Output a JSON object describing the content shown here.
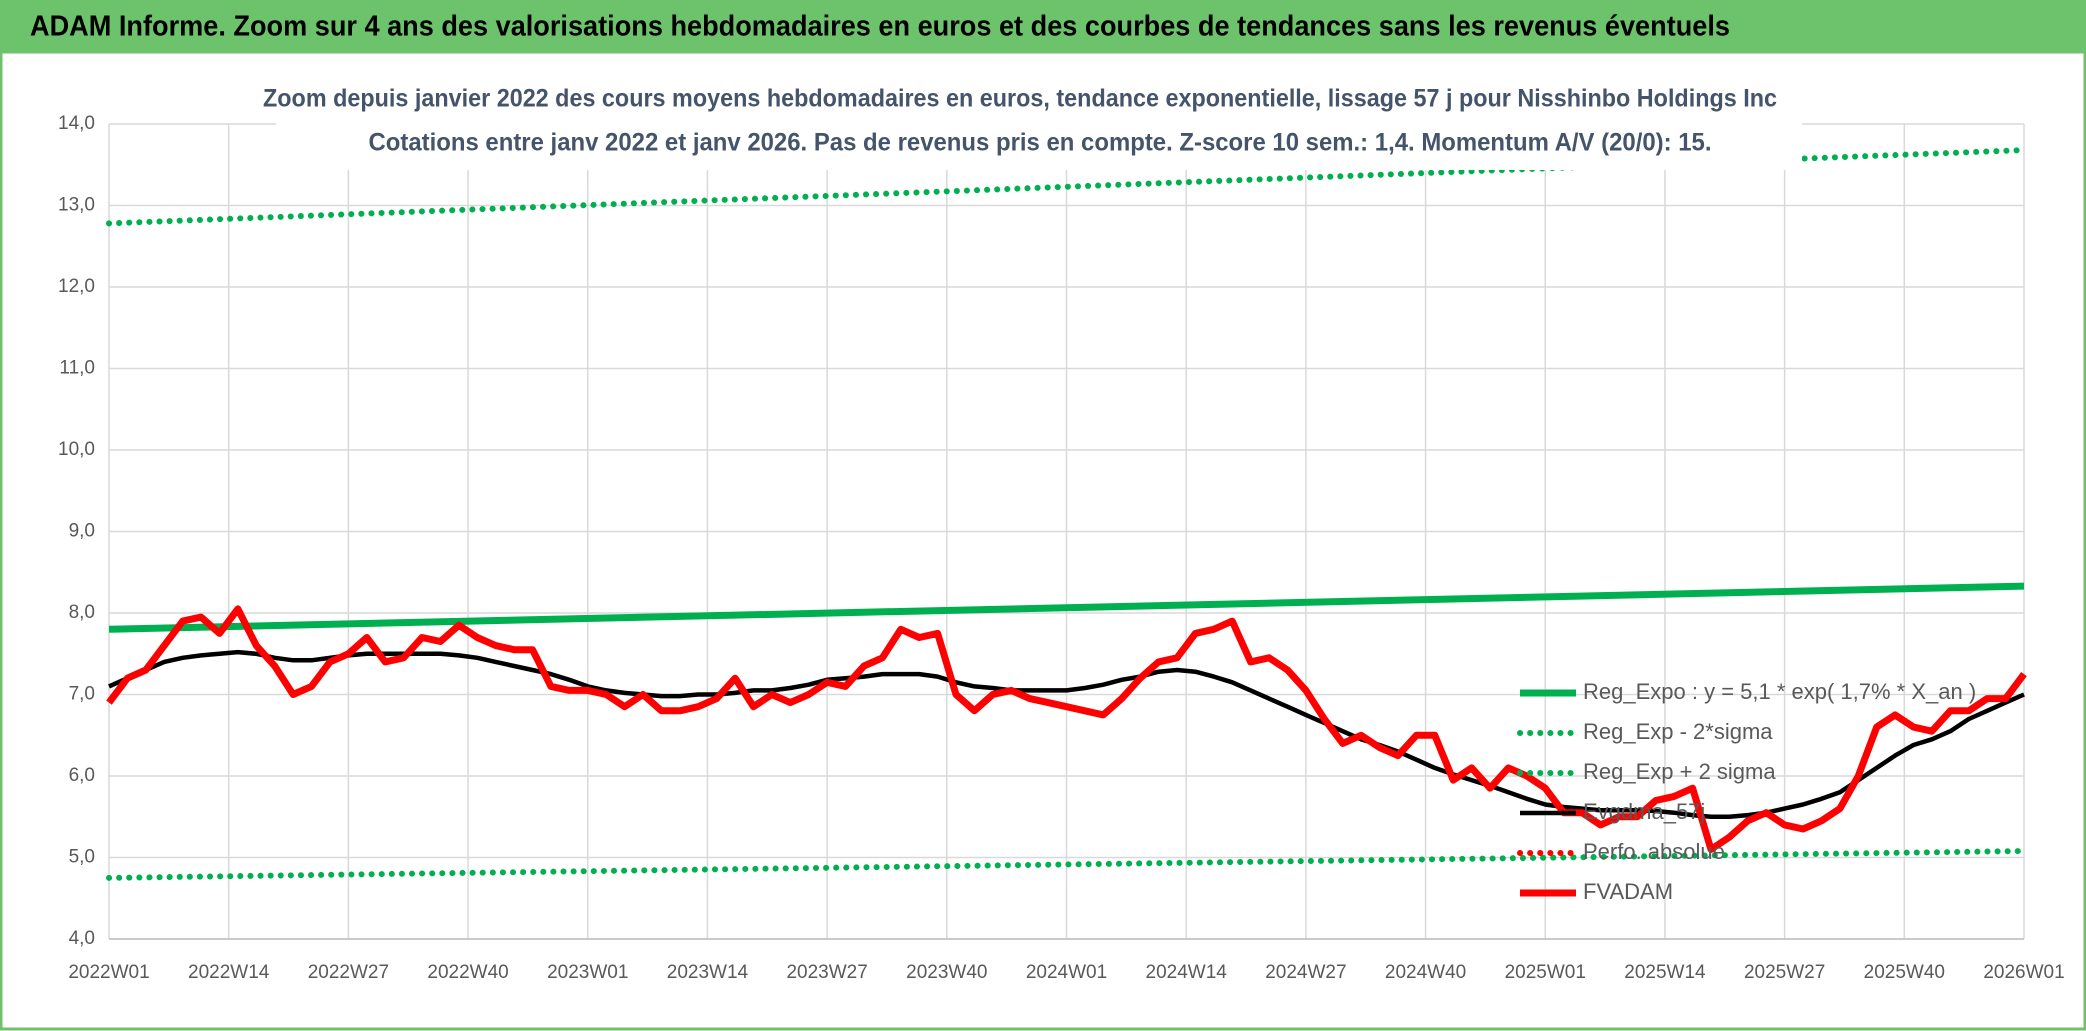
{
  "chart_data": {
    "type": "line",
    "header": "ADAM Informe. Zoom sur 4 ans des valorisations hebdomadaires en euros et des courbes de tendances sans les revenus éventuels",
    "title": "Zoom depuis janvier 2022 des cours moyens hebdomadaires en euros, tendance exponentielle, lissage 57 j pour Nisshinbo Holdings Inc",
    "subtitle": "Cotations entre janv 2022 et janv 2026. Pas de revenus pris en compte. Z-score 10 sem.: 1,4. Momentum A/V (20/0): 15.",
    "x": [
      0,
      2,
      4,
      6,
      8,
      10,
      12,
      14,
      16,
      18,
      20,
      22,
      24,
      26,
      28,
      30,
      32,
      34,
      36,
      38,
      40,
      42,
      44,
      46,
      48,
      50,
      52,
      54,
      56,
      58,
      60,
      62,
      64,
      66,
      68,
      70,
      72,
      74,
      76,
      78,
      80,
      82,
      84,
      86,
      88,
      90,
      92,
      94,
      96,
      98,
      100,
      102,
      104,
      106,
      108,
      110,
      112,
      114,
      116,
      118,
      120,
      122,
      124,
      126,
      128,
      130,
      132,
      134,
      136,
      138,
      140,
      142,
      144,
      146,
      148,
      150,
      152,
      154,
      156,
      158,
      160,
      162,
      164,
      166,
      168,
      170,
      172,
      174,
      176,
      178,
      180,
      182,
      184,
      186,
      188,
      190,
      192,
      194,
      196,
      198,
      200,
      202,
      204,
      206,
      208
    ],
    "xlim": [
      0,
      208
    ],
    "xticks": [
      {
        "value": 0,
        "label": "2022W01"
      },
      {
        "value": 13,
        "label": "2022W14"
      },
      {
        "value": 26,
        "label": "2022W27"
      },
      {
        "value": 39,
        "label": "2022W40"
      },
      {
        "value": 52,
        "label": "2023W01"
      },
      {
        "value": 65,
        "label": "2023W14"
      },
      {
        "value": 78,
        "label": "2023W27"
      },
      {
        "value": 91,
        "label": "2023W40"
      },
      {
        "value": 104,
        "label": "2024W01"
      },
      {
        "value": 117,
        "label": "2024W14"
      },
      {
        "value": 130,
        "label": "2024W27"
      },
      {
        "value": 143,
        "label": "2024W40"
      },
      {
        "value": 156,
        "label": "2025W01"
      },
      {
        "value": 169,
        "label": "2025W14"
      },
      {
        "value": 182,
        "label": "2025W27"
      },
      {
        "value": 195,
        "label": "2025W40"
      },
      {
        "value": 208,
        "label": "2026W01"
      }
    ],
    "ylim": [
      4,
      14
    ],
    "yticks": [
      {
        "value": 4,
        "label": "4,0"
      },
      {
        "value": 5,
        "label": "5,0"
      },
      {
        "value": 6,
        "label": "6,0"
      },
      {
        "value": 7,
        "label": "7,0"
      },
      {
        "value": 8,
        "label": "8,0"
      },
      {
        "value": 9,
        "label": "9,0"
      },
      {
        "value": 10,
        "label": "10,0"
      },
      {
        "value": 11,
        "label": "11,0"
      },
      {
        "value": 12,
        "label": "12,0"
      },
      {
        "value": 13,
        "label": "13,0"
      },
      {
        "value": 14,
        "label": "14,0"
      }
    ],
    "grid": true,
    "series": [
      {
        "name": "Reg_Expo : y = 5,1 * exp( 1,7% *  X_an )",
        "color": "#00b050",
        "style": "solid",
        "x": [
          0,
          208
        ],
        "values": [
          7.8,
          8.33
        ]
      },
      {
        "name": "Reg_Exp - 2*sigma",
        "color": "#00b050",
        "style": "dotted",
        "x": [
          0,
          208
        ],
        "values": [
          4.75,
          5.08
        ]
      },
      {
        "name": "Reg_Exp + 2 sigma",
        "color": "#00b050",
        "style": "dotted",
        "x": [
          0,
          208
        ],
        "values": [
          12.78,
          13.68
        ]
      },
      {
        "name": "Evgdma_57j",
        "color": "#000000",
        "style": "solid",
        "values": [
          7.1,
          7.2,
          7.3,
          7.4,
          7.45,
          7.48,
          7.5,
          7.52,
          7.5,
          7.45,
          7.42,
          7.42,
          7.45,
          7.48,
          7.5,
          7.5,
          7.5,
          7.5,
          7.5,
          7.48,
          7.45,
          7.4,
          7.35,
          7.3,
          7.25,
          7.18,
          7.1,
          7.05,
          7.02,
          7.0,
          6.98,
          6.98,
          7.0,
          7.0,
          7.02,
          7.05,
          7.05,
          7.08,
          7.12,
          7.18,
          7.2,
          7.22,
          7.25,
          7.25,
          7.25,
          7.22,
          7.15,
          7.1,
          7.08,
          7.05,
          7.05,
          7.05,
          7.05,
          7.08,
          7.12,
          7.18,
          7.22,
          7.28,
          7.3,
          7.28,
          7.22,
          7.15,
          7.05,
          6.95,
          6.85,
          6.75,
          6.65,
          6.55,
          6.45,
          6.38,
          6.3,
          6.2,
          6.1,
          6.02,
          5.95,
          5.88,
          5.8,
          5.72,
          5.65,
          5.62,
          5.6,
          5.58,
          5.58,
          5.58,
          5.57,
          5.55,
          5.52,
          5.5,
          5.5,
          5.52,
          5.55,
          5.6,
          5.65,
          5.72,
          5.8,
          5.95,
          6.1,
          6.25,
          6.38,
          6.45,
          6.55,
          6.7,
          6.8,
          6.9,
          7.0
        ]
      },
      {
        "name": "Perfo. absolue",
        "color": "#ff0000",
        "style": "dotted",
        "x": [],
        "values": []
      },
      {
        "name": "FVADAM",
        "color": "#ff0000",
        "style": "thick",
        "values": [
          6.9,
          7.2,
          7.3,
          7.6,
          7.9,
          7.95,
          7.75,
          8.05,
          7.6,
          7.35,
          7.0,
          7.1,
          7.4,
          7.5,
          7.7,
          7.4,
          7.45,
          7.7,
          7.65,
          7.85,
          7.7,
          7.6,
          7.55,
          7.55,
          7.1,
          7.05,
          7.05,
          7.0,
          6.85,
          7.0,
          6.8,
          6.8,
          6.85,
          6.95,
          7.2,
          6.85,
          7.0,
          6.9,
          7.0,
          7.15,
          7.1,
          7.35,
          7.45,
          7.8,
          7.7,
          7.75,
          7.0,
          6.8,
          7.0,
          7.05,
          6.95,
          6.9,
          6.85,
          6.8,
          6.75,
          6.95,
          7.2,
          7.4,
          7.45,
          7.75,
          7.8,
          7.9,
          7.4,
          7.45,
          7.3,
          7.05,
          6.7,
          6.4,
          6.5,
          6.35,
          6.25,
          6.5,
          6.5,
          5.95,
          6.1,
          5.85,
          6.1,
          6.0,
          5.85,
          5.55,
          5.55,
          5.4,
          5.5,
          5.5,
          5.7,
          5.75,
          5.85,
          5.1,
          5.25,
          5.45,
          5.55,
          5.4,
          5.35,
          5.45,
          5.6,
          6.0,
          6.6,
          6.75,
          6.6,
          6.55,
          6.8,
          6.8,
          6.95,
          6.95,
          7.25
        ]
      }
    ]
  }
}
